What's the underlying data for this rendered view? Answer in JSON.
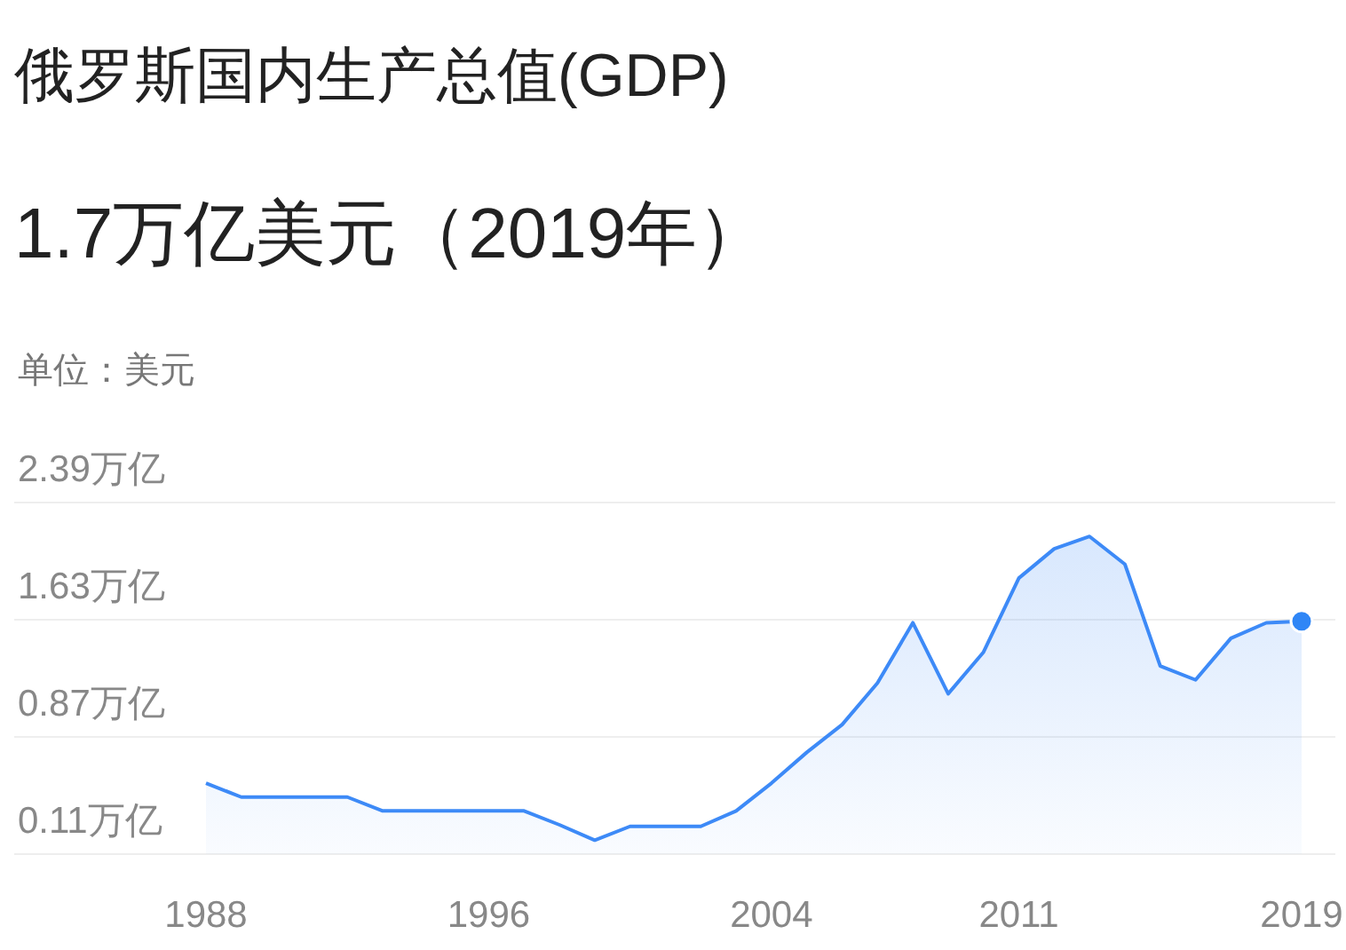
{
  "chart_data": {
    "type": "area",
    "title": "俄罗斯国内生产总值(GDP)",
    "subtitle": "1.7万亿美元（2019年）",
    "annotations": [
      "单位：美元"
    ],
    "categories": [
      "1988",
      null,
      null,
      null,
      null,
      null,
      null,
      null,
      "1996",
      null,
      null,
      null,
      null,
      null,
      null,
      null,
      "2004",
      null,
      null,
      null,
      null,
      null,
      null,
      "2011",
      null,
      null,
      null,
      null,
      null,
      null,
      null,
      "2019"
    ],
    "series": [
      {
        "color": "#3d8af7",
        "values": [
          0.57,
          0.48,
          0.48,
          0.48,
          0.48,
          0.39,
          0.39,
          0.39,
          0.39,
          0.39,
          0.3,
          0.2,
          0.29,
          0.29,
          0.29,
          0.39,
          0.57,
          0.77,
          0.95,
          1.22,
          1.61,
          1.15,
          1.42,
          1.9,
          2.09,
          2.17,
          1.99,
          1.33,
          1.24,
          1.51,
          1.61,
          1.62
        ]
      },
      {
        "type": "scatter",
        "color": "#2f86f6",
        "marker": "circle",
        "values": [
          null,
          null,
          null,
          null,
          null,
          null,
          null,
          null,
          null,
          null,
          null,
          null,
          null,
          null,
          null,
          null,
          null,
          null,
          null,
          null,
          null,
          null,
          null,
          null,
          null,
          null,
          null,
          null,
          null,
          null,
          null,
          1.62
        ]
      }
    ],
    "ylim": [
      0.11,
      2.39
    ],
    "yticks": [
      {
        "value": 0.11,
        "label": "0.11万亿"
      },
      {
        "value": 0.87,
        "label": "0.87万亿"
      },
      {
        "value": 1.63,
        "label": "1.63万亿"
      },
      {
        "value": 2.39,
        "label": "2.39万亿"
      }
    ],
    "grid": "y"
  }
}
